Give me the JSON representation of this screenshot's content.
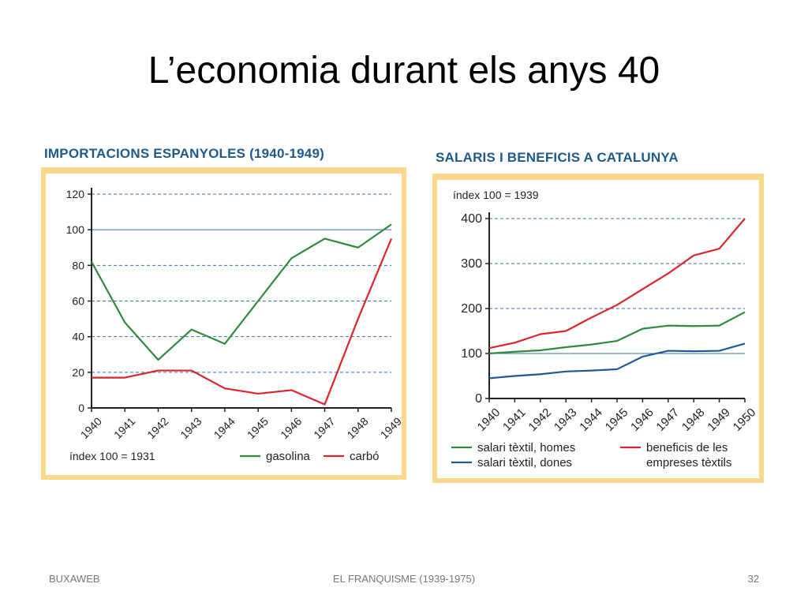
{
  "slide": {
    "title": "L’economia durant els anys 40",
    "footer_left": "BUXAWEB",
    "footer_center": "EL FRANQUISME (1939-1975)",
    "footer_right": "32"
  },
  "colors": {
    "green": "#2e8b3e",
    "red": "#d9262a",
    "blue": "#1f5a96",
    "frame": "#fbd98a",
    "title_blue": "#1f5a8c",
    "grid": "#3a6fb0"
  },
  "chart_data": [
    {
      "type": "line",
      "title": "IMPORTACIONS ESPANYOLES (1940-1949)",
      "note": "índex 100 = 1931",
      "categories": [
        "1940",
        "1941",
        "1942",
        "1943",
        "1944",
        "1945",
        "1946",
        "1947",
        "1948",
        "1949"
      ],
      "series": [
        {
          "name": "gasolina",
          "values": [
            82,
            48,
            27,
            44,
            36,
            60,
            84,
            95,
            90,
            103
          ]
        },
        {
          "name": "carbó",
          "values": [
            17,
            17,
            21,
            21,
            11,
            8,
            10,
            2,
            50,
            95
          ]
        }
      ],
      "ylim": [
        0,
        120
      ],
      "yticks": [
        "0",
        "20",
        "40",
        "60",
        "80",
        "100",
        "120"
      ],
      "grid": true,
      "legend": "bottom"
    },
    {
      "type": "line",
      "title": "SALARIS I BENEFICIS A CATALUNYA",
      "note": "índex 100 = 1939",
      "categories": [
        "1940",
        "1941",
        "1942",
        "1943",
        "1944",
        "1945",
        "1946",
        "1947",
        "1948",
        "1949",
        "1950"
      ],
      "series": [
        {
          "name": "salari tèxtil, homes",
          "values": [
            100,
            104,
            107,
            114,
            120,
            128,
            155,
            162,
            161,
            162,
            192
          ]
        },
        {
          "name": "salari tèxtil, dones",
          "values": [
            45,
            50,
            54,
            60,
            62,
            65,
            93,
            106,
            105,
            106,
            122
          ]
        },
        {
          "name": "beneficis de les empreses tèxtils",
          "legend_lines": [
            "beneficis de les",
            "empreses tèxtils"
          ],
          "values": [
            112,
            124,
            143,
            150,
            180,
            208,
            243,
            278,
            318,
            333,
            400
          ]
        }
      ],
      "ylim": [
        0,
        400
      ],
      "yticks": [
        "0",
        "100",
        "200",
        "300",
        "400"
      ],
      "grid": true,
      "legend": "bottom"
    }
  ]
}
